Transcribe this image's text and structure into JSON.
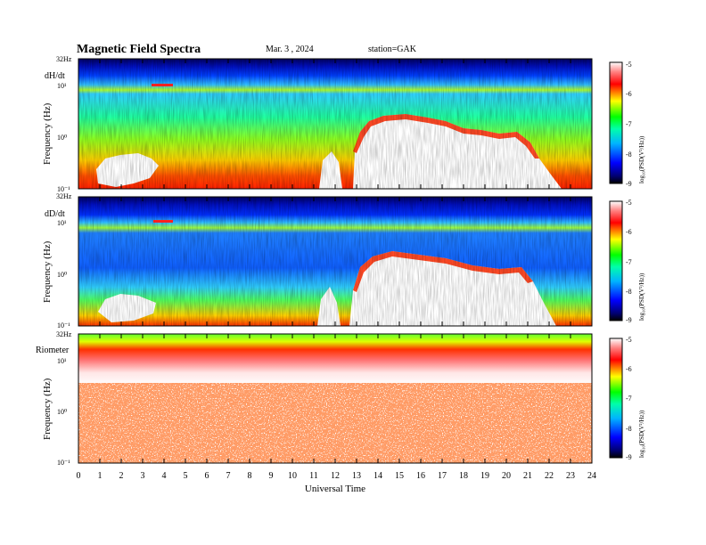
{
  "header": {
    "title": "Magnetic  Field  Spectra",
    "date": "Mar. 3  , 2024",
    "station": "station=GAK"
  },
  "chart_data": [
    {
      "type": "heatmap",
      "panel_label": "dH/dt",
      "ylabel": "Frequency  (Hz)",
      "y_scale": "log",
      "ylim": [
        0.1,
        32
      ],
      "y_ticks": [
        "10⁻¹",
        "10⁰",
        "10¹",
        "32Hz"
      ],
      "xlim": [
        0,
        24
      ],
      "colorbar": {
        "label": "log₁₀(PSD(V²/Hz))",
        "range": [
          -9,
          -5
        ],
        "ticks": [
          "-5",
          "-6",
          "-7",
          "-8",
          "-9"
        ]
      }
    },
    {
      "type": "heatmap",
      "panel_label": "dD/dt",
      "ylabel": "Frequency  (Hz)",
      "y_scale": "log",
      "ylim": [
        0.1,
        32
      ],
      "y_ticks": [
        "10⁻¹",
        "10⁰",
        "10¹",
        "32Hz"
      ],
      "xlim": [
        0,
        24
      ],
      "colorbar": {
        "label": "log₁₀(PSD(V²/Hz))",
        "range": [
          -9,
          -5
        ],
        "ticks": [
          "-5",
          "-6",
          "-7",
          "-8",
          "-9"
        ]
      }
    },
    {
      "type": "heatmap",
      "panel_label": "Riometer",
      "ylabel": "Frequency  (Hz)",
      "y_scale": "log",
      "ylim": [
        0.1,
        32
      ],
      "y_ticks": [
        "10⁻¹",
        "10⁰",
        "10¹",
        "32Hz"
      ],
      "xlim": [
        0,
        24
      ],
      "x_ticks": [
        "0",
        "1",
        "2",
        "3",
        "4",
        "5",
        "6",
        "7",
        "8",
        "9",
        "10",
        "11",
        "12",
        "13",
        "14",
        "15",
        "16",
        "17",
        "18",
        "19",
        "20",
        "21",
        "22",
        "23",
        "24"
      ],
      "xlabel": "Universal  Time",
      "colorbar": {
        "label": "log₁₀(PSD(V²/Hz))",
        "range": [
          -9,
          -5
        ],
        "ticks": [
          "-5",
          "-6",
          "-7",
          "-8",
          "-9"
        ]
      }
    }
  ]
}
